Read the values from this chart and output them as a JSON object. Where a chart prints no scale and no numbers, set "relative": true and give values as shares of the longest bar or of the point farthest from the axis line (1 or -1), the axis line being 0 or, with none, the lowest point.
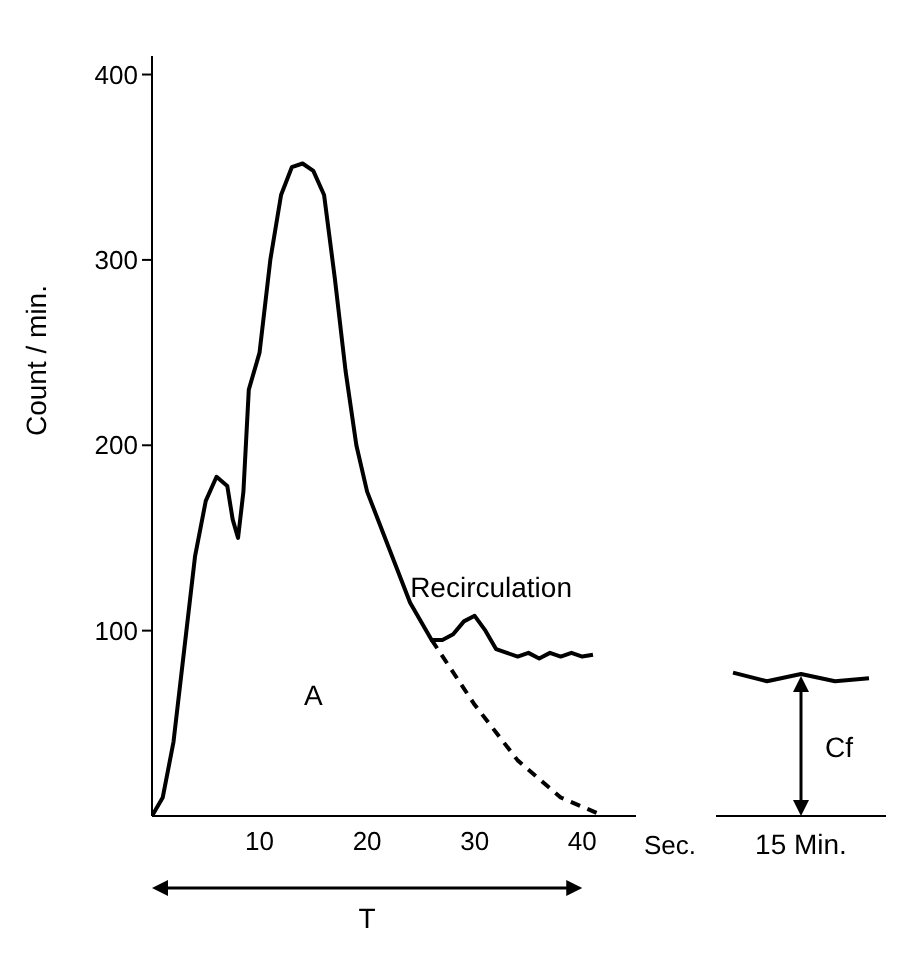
{
  "chart_data": [
    {
      "type": "line",
      "ylabel": "Count / min.",
      "xlabel": "Sec.",
      "xlim": [
        0,
        45
      ],
      "xticks": [
        10,
        20,
        30,
        40
      ],
      "ylim": [
        0,
        410
      ],
      "yticks": [
        100,
        200,
        300,
        400
      ],
      "grid": false,
      "legend": false,
      "marker": "none",
      "annotations": [
        "Recirculation",
        "A",
        "T"
      ],
      "series": [
        {
          "color": "#000000",
          "line_style": "solid",
          "x": [
            0,
            1,
            2,
            3,
            4,
            5,
            6,
            7,
            7.5,
            8,
            8.5,
            9,
            10,
            11,
            12,
            13,
            14,
            15,
            16,
            17,
            18,
            19,
            20,
            22,
            24,
            26,
            27,
            28,
            29,
            30,
            31,
            32,
            33,
            34,
            35,
            36,
            37,
            38,
            39,
            40,
            41
          ],
          "values": [
            0,
            10,
            40,
            90,
            140,
            170,
            183,
            178,
            160,
            150,
            175,
            230,
            250,
            300,
            335,
            350,
            352,
            348,
            335,
            290,
            240,
            200,
            175,
            145,
            115,
            95,
            95,
            98,
            105,
            108,
            100,
            90,
            88,
            86,
            88,
            85,
            88,
            86,
            88,
            86,
            87
          ]
        },
        {
          "color": "#000000",
          "line_style": "dashed",
          "x": [
            26,
            30,
            34,
            38,
            42
          ],
          "values": [
            95,
            60,
            30,
            10,
            0
          ]
        }
      ]
    },
    {
      "type": "line",
      "relative": true,
      "categories": [
        null,
        null,
        null,
        null,
        null
      ],
      "legend": false,
      "marker": "none",
      "annotations": [
        "Cf",
        "15 Min."
      ],
      "series": [
        {
          "color": "#000000",
          "line_style": "solid",
          "values": [
            1,
            0.94,
            0.99,
            0.94,
            0.96
          ]
        }
      ]
    }
  ]
}
